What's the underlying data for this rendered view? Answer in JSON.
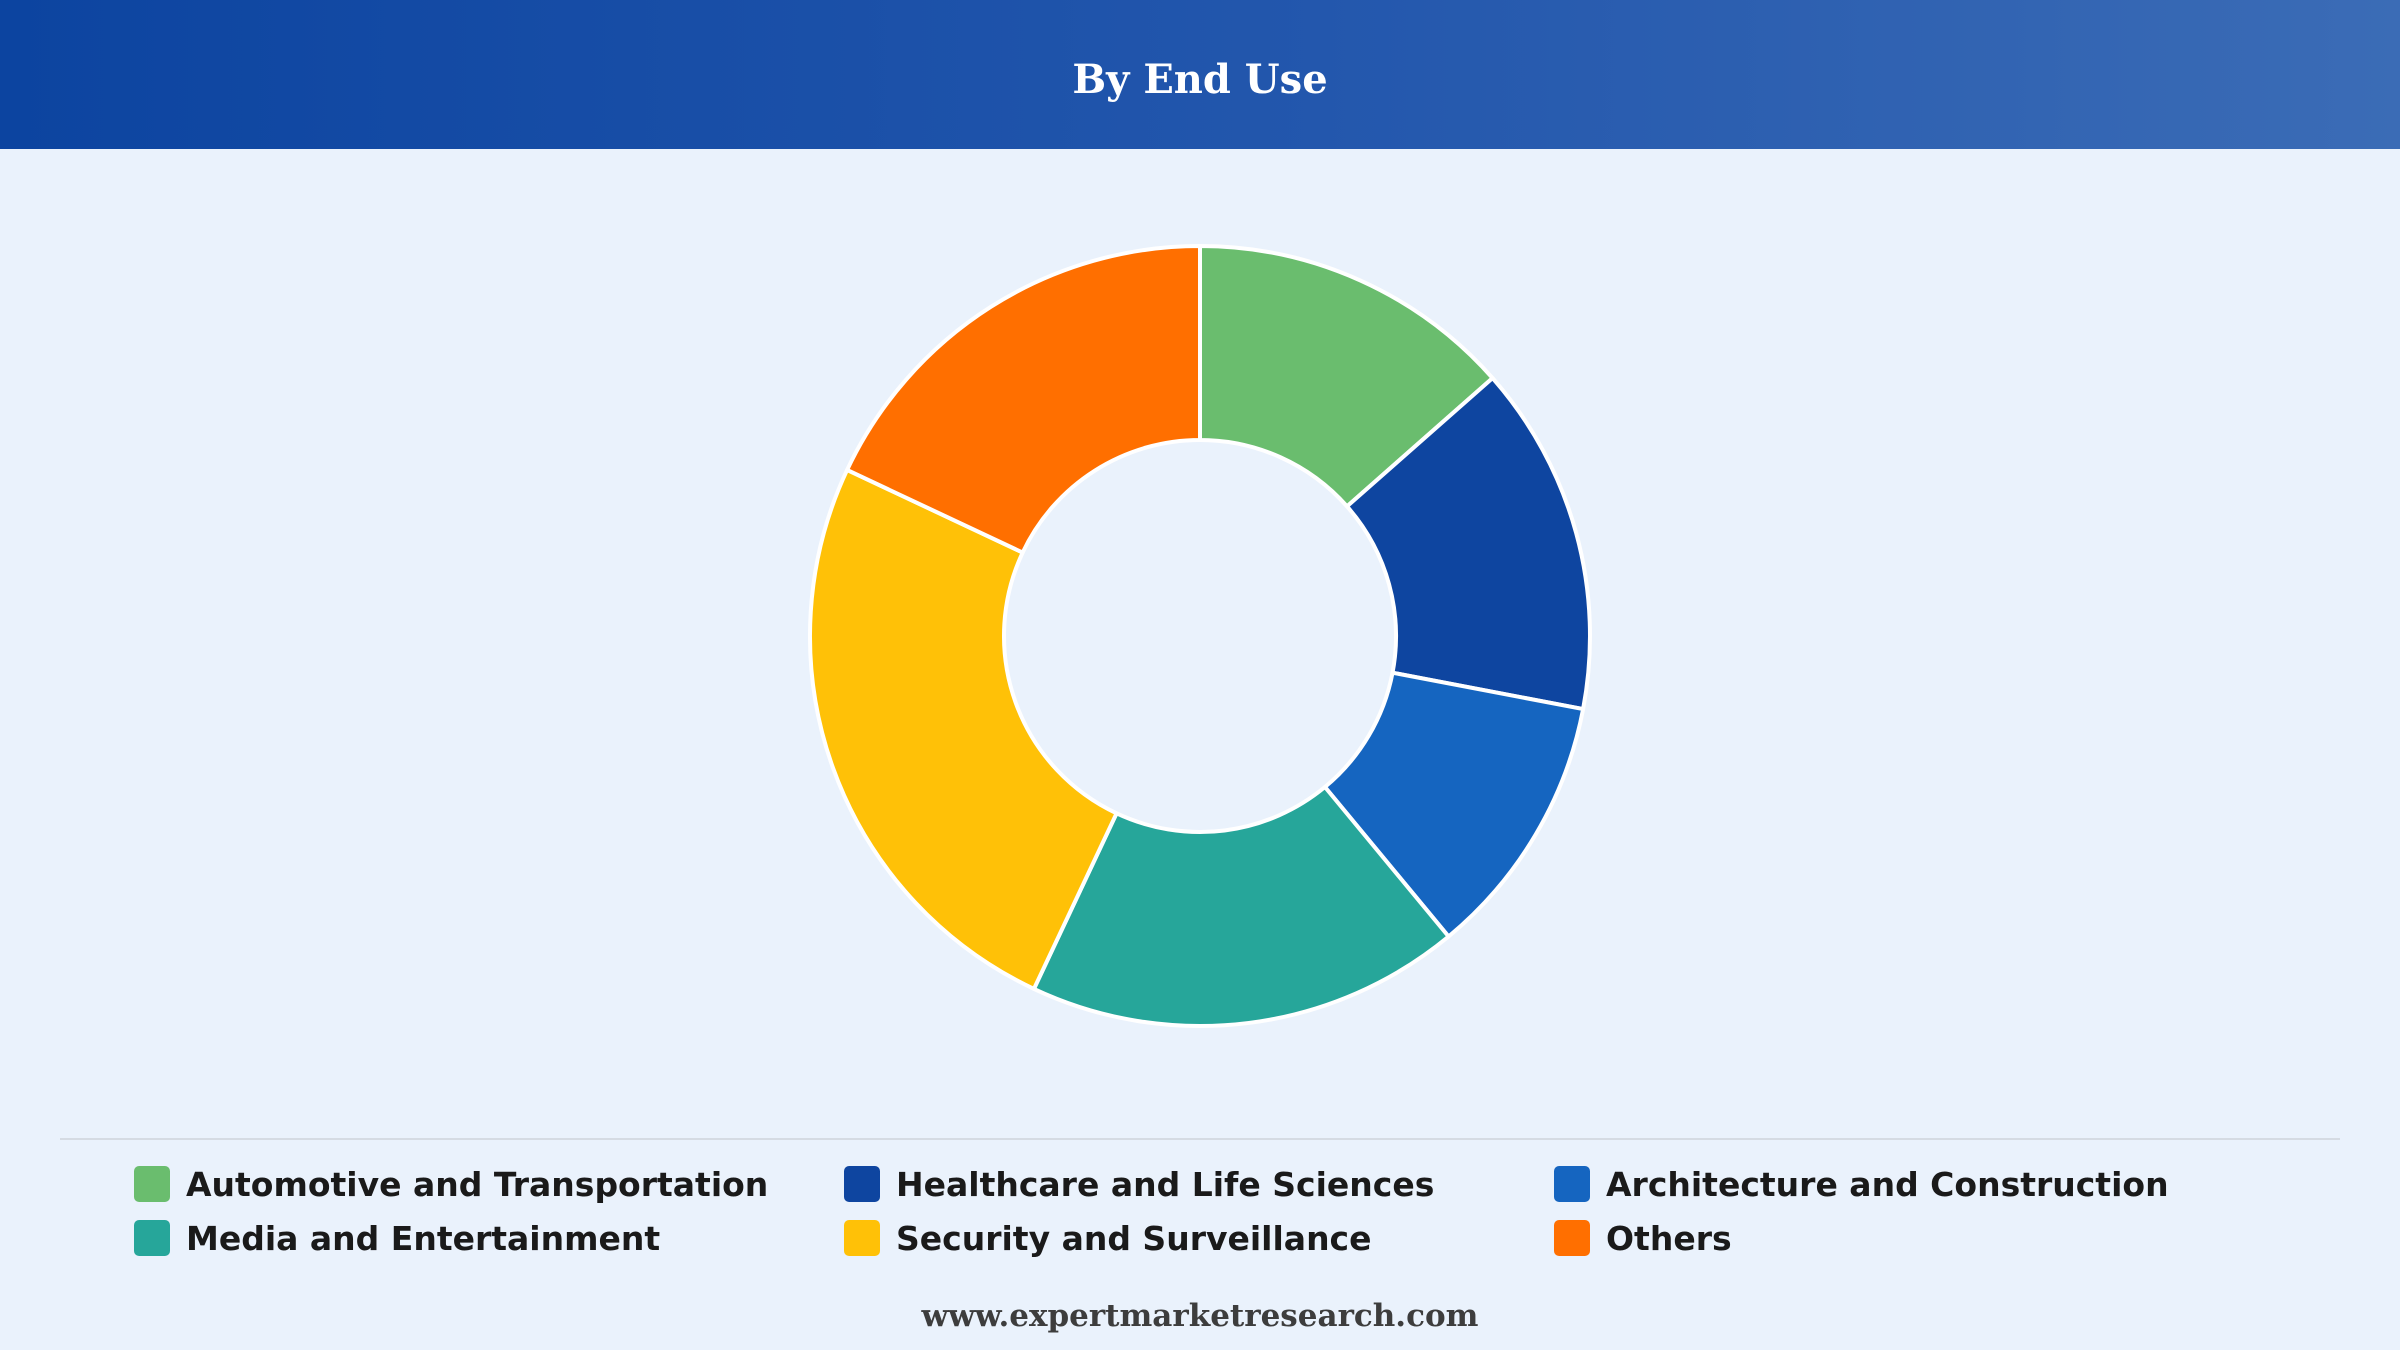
{
  "header": {
    "title": "By End Use"
  },
  "chart_data": {
    "type": "pie",
    "donut": true,
    "categories": [
      "Automotive and Transportation",
      "Healthcare and Life Sciences",
      "Architecture and Construction",
      "Media and Entertainment",
      "Security and Surveillance",
      "Others"
    ],
    "values": [
      13.5,
      14.5,
      11,
      18,
      25,
      18
    ],
    "colors": [
      "#6abd6e",
      "#0e45a0",
      "#1565c0",
      "#26a69a",
      "#ffc107",
      "#ff6f00"
    ],
    "legend_position": "bottom"
  },
  "legend": {
    "items": [
      {
        "label": "Automotive and Transportation",
        "color": "#6abd6e"
      },
      {
        "label": "Healthcare and Life Sciences",
        "color": "#0e45a0"
      },
      {
        "label": "Architecture and Construction",
        "color": "#1565c0"
      },
      {
        "label": "Media and Entertainment",
        "color": "#26a69a"
      },
      {
        "label": "Security and Surveillance",
        "color": "#ffc107"
      },
      {
        "label": "Others",
        "color": "#ff6f00"
      }
    ]
  },
  "footer": {
    "source": "www.expertmarketresearch.com"
  }
}
